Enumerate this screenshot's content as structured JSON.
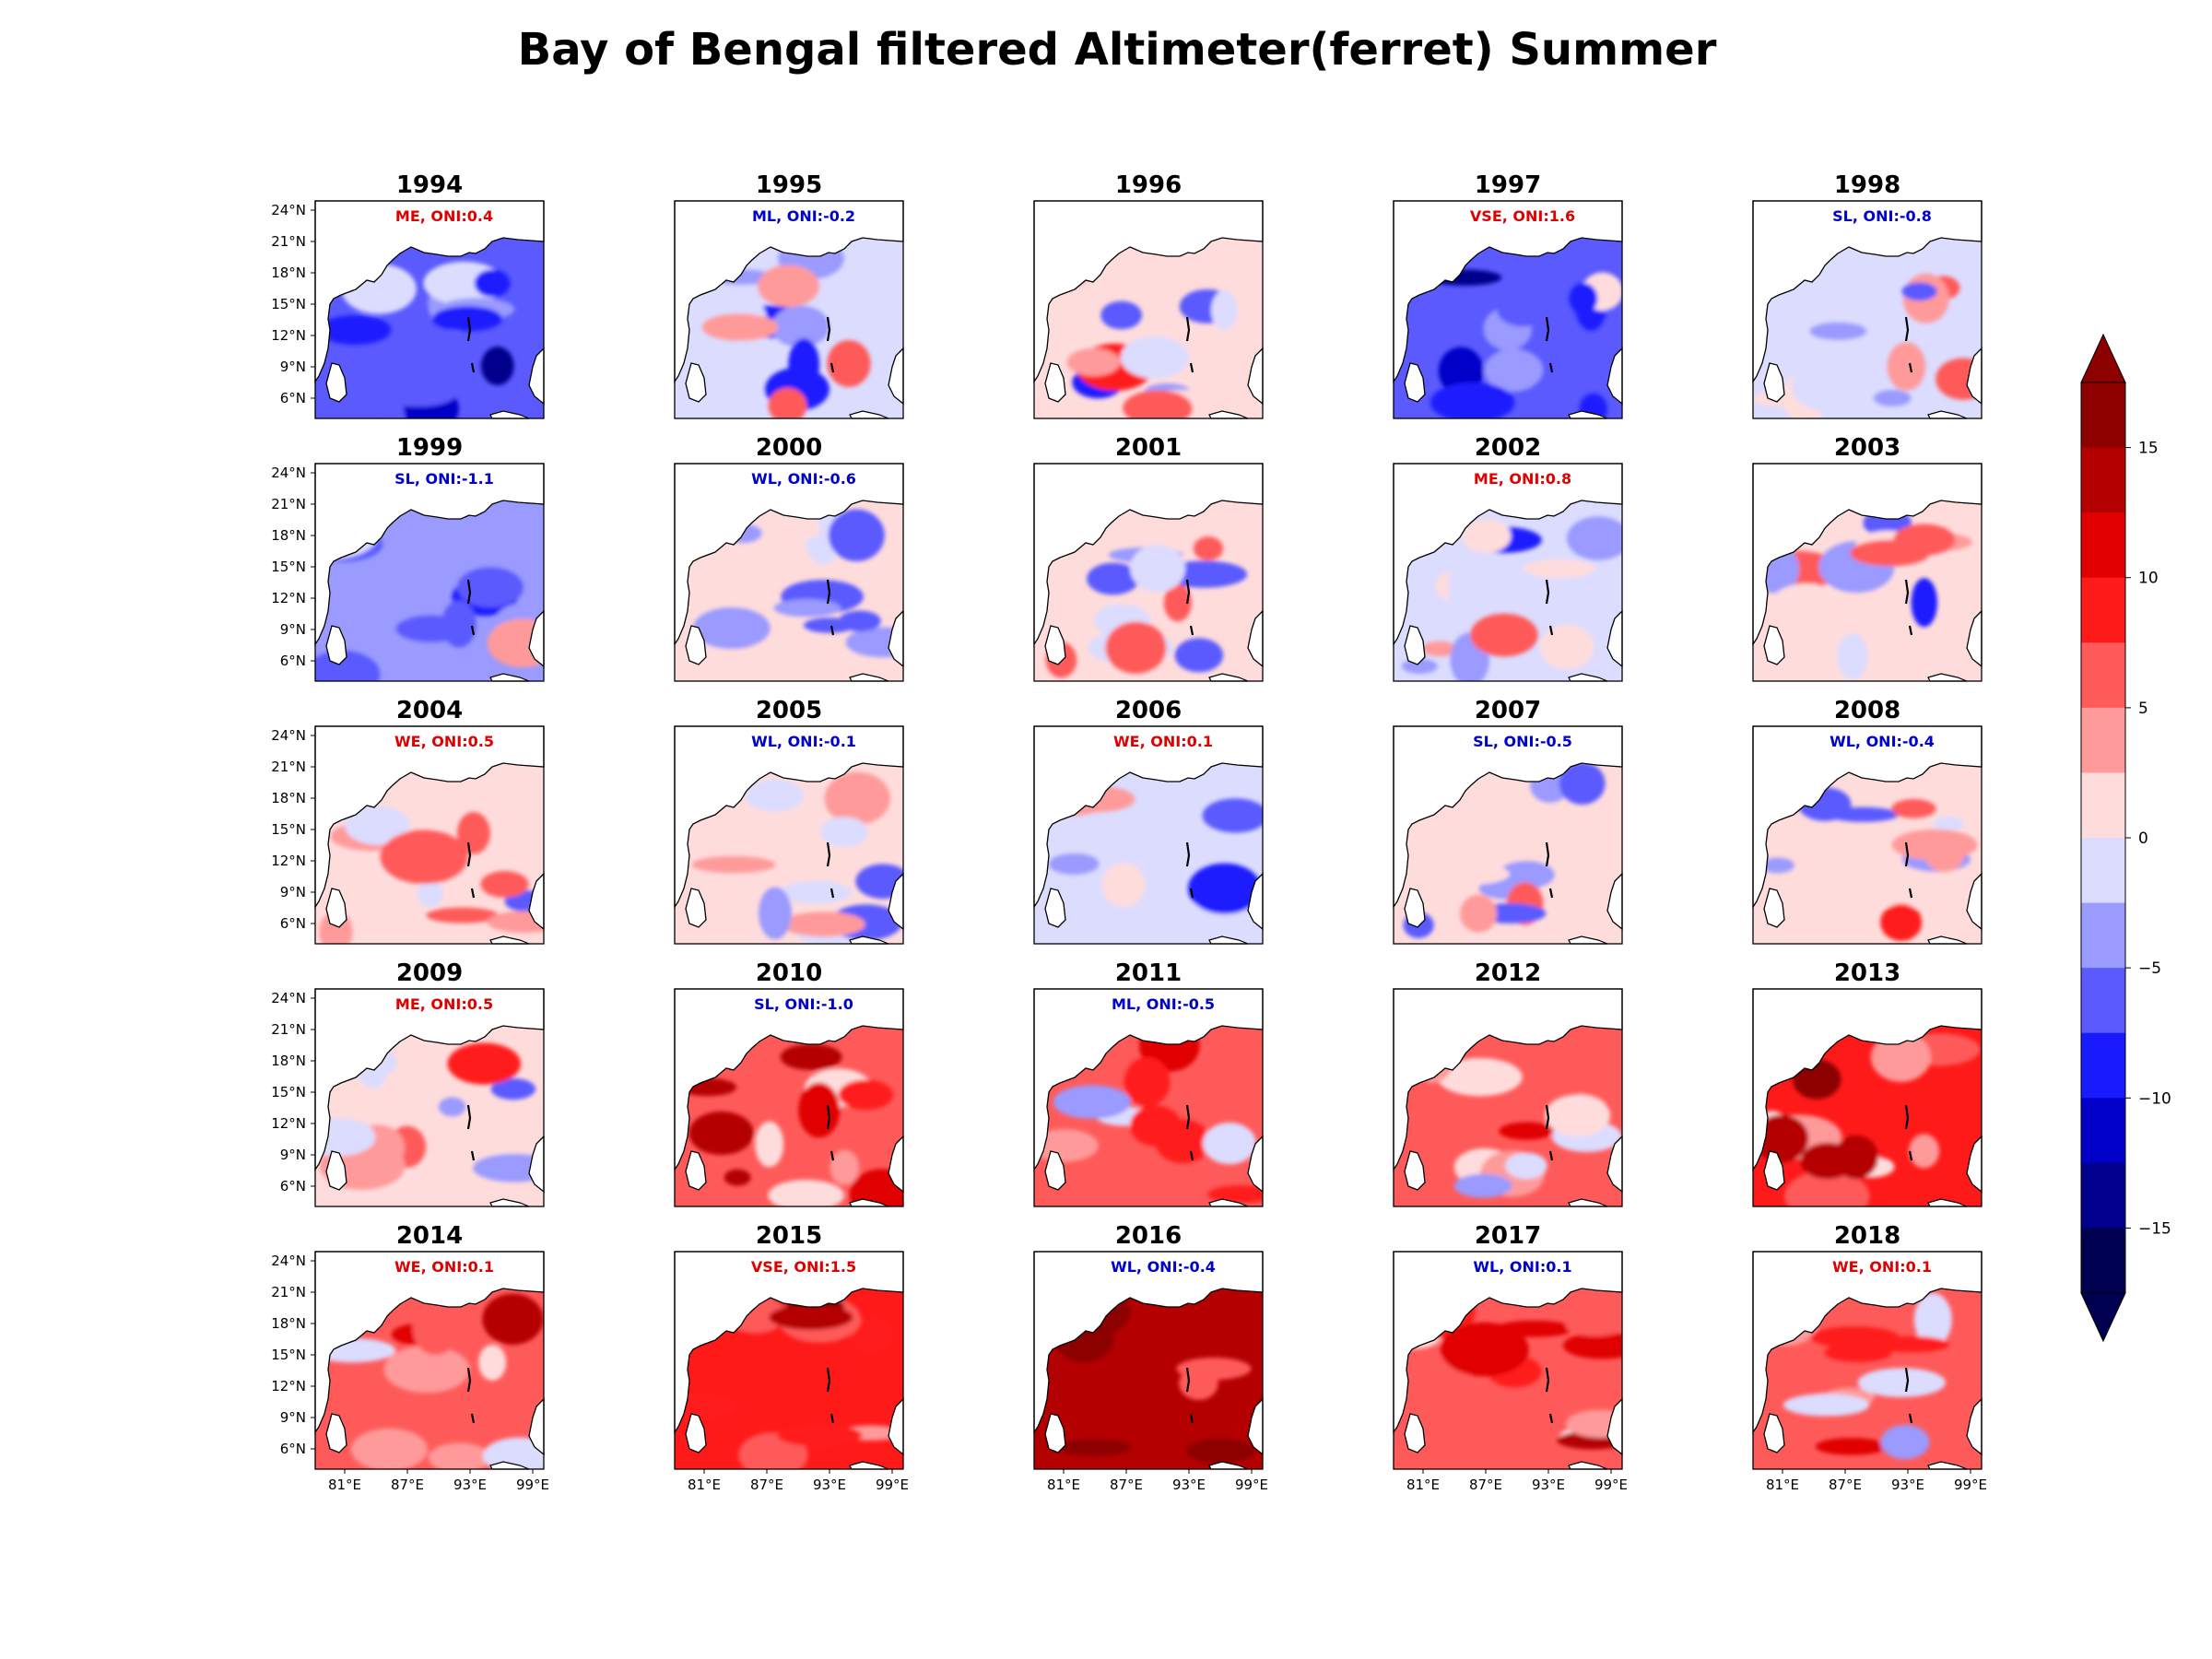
{
  "title": "Bay of Bengal filtered Altimeter(ferret) Summer",
  "palette": {
    "red_text": "#e00000",
    "blue_text": "#0000cc",
    "levels": [
      "#000050",
      "#00008c",
      "#0000c8",
      "#1a1aff",
      "#5a5aff",
      "#9a9aff",
      "#dcdcff",
      "#ffdcdc",
      "#ff9a9a",
      "#ff5a5a",
      "#ff1a1a",
      "#e00000",
      "#b40000",
      "#8c0000"
    ]
  },
  "colorbar": {
    "ticks": [
      "15",
      "10",
      "5",
      "0",
      "−5",
      "−10",
      "−15"
    ],
    "range": [
      -17.5,
      17.5
    ]
  },
  "lat_labels": [
    "24°N",
    "21°N",
    "18°N",
    "15°N",
    "12°N",
    "9°N",
    "6°N"
  ],
  "lon_labels": [
    "81°E",
    "87°E",
    "93°E",
    "99°E"
  ],
  "panels": [
    {
      "year": "1994",
      "label": "ME, ONI:0.4",
      "color": "red",
      "mean": -6
    },
    {
      "year": "1995",
      "label": "ML, ONI:-0.2",
      "color": "blue",
      "mean": -1
    },
    {
      "year": "1996",
      "label": "",
      "color": "blue",
      "mean": 0
    },
    {
      "year": "1997",
      "label": "VSE, ONI:1.6",
      "color": "red",
      "mean": -7
    },
    {
      "year": "1998",
      "label": "SL, ONI:-0.8",
      "color": "blue",
      "mean": -1
    },
    {
      "year": "1999",
      "label": "SL, ONI:-1.1",
      "color": "blue",
      "mean": -3
    },
    {
      "year": "2000",
      "label": "WL, ONI:-0.6",
      "color": "blue",
      "mean": 0
    },
    {
      "year": "2001",
      "label": "",
      "color": "blue",
      "mean": 0
    },
    {
      "year": "2002",
      "label": "ME, ONI:0.8",
      "color": "red",
      "mean": -1
    },
    {
      "year": "2003",
      "label": "",
      "color": "blue",
      "mean": 0
    },
    {
      "year": "2004",
      "label": "WE, ONI:0.5",
      "color": "red",
      "mean": 0
    },
    {
      "year": "2005",
      "label": "WL, ONI:-0.1",
      "color": "blue",
      "mean": 0
    },
    {
      "year": "2006",
      "label": "WE, ONI:0.1",
      "color": "red",
      "mean": -1
    },
    {
      "year": "2007",
      "label": "SL, ONI:-0.5",
      "color": "blue",
      "mean": 0
    },
    {
      "year": "2008",
      "label": "WL, ONI:-0.4",
      "color": "blue",
      "mean": 2
    },
    {
      "year": "2009",
      "label": "ME, ONI:0.5",
      "color": "red",
      "mean": 1
    },
    {
      "year": "2010",
      "label": "SL, ONI:-1.0",
      "color": "blue",
      "mean": 7
    },
    {
      "year": "2011",
      "label": "ML, ONI:-0.5",
      "color": "blue",
      "mean": 5
    },
    {
      "year": "2012",
      "label": "",
      "color": "red",
      "mean": 5
    },
    {
      "year": "2013",
      "label": "",
      "color": "red",
      "mean": 8
    },
    {
      "year": "2014",
      "label": "WE, ONI:0.1",
      "color": "red",
      "mean": 6
    },
    {
      "year": "2015",
      "label": "VSE, ONI:1.5",
      "color": "red",
      "mean": 9
    },
    {
      "year": "2016",
      "label": "WL, ONI:-0.4",
      "color": "blue",
      "mean": 13
    },
    {
      "year": "2017",
      "label": "WL, ONI:0.1",
      "color": "blue",
      "mean": 7
    },
    {
      "year": "2018",
      "label": "WE, ONI:0.1",
      "color": "red",
      "mean": 5
    }
  ]
}
